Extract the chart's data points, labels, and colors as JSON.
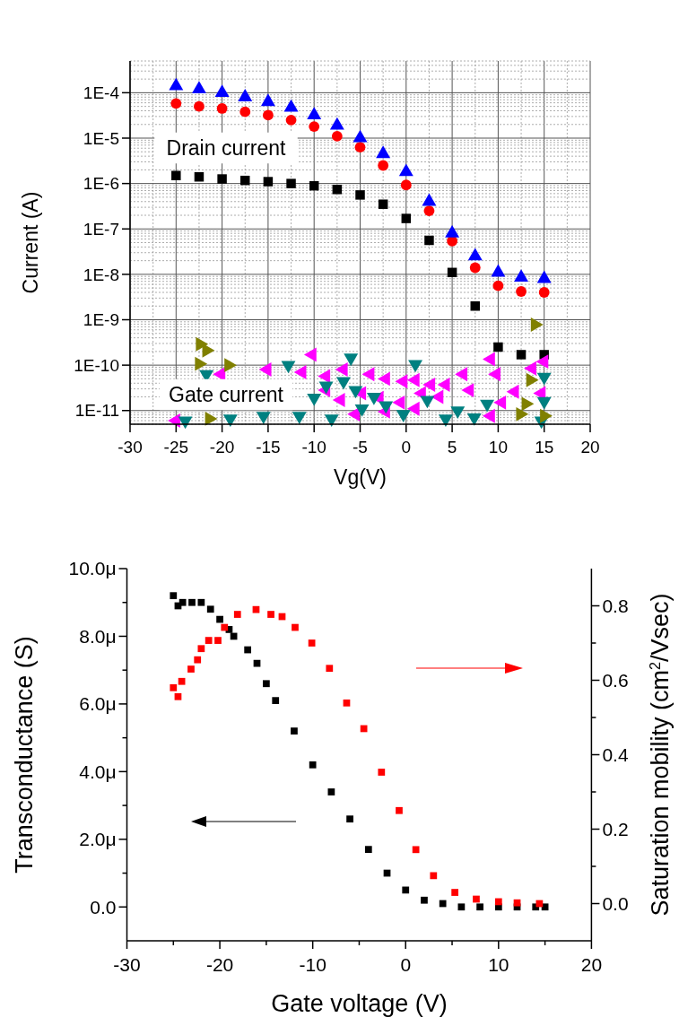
{
  "chart_data": [
    {
      "type": "scatter",
      "xlabel": "Vg(V)",
      "ylabel": "Current (A)",
      "log": "y",
      "grid": true,
      "xlim": [
        -30,
        20
      ],
      "xticks": [
        -30,
        -25,
        -20,
        -15,
        -10,
        -5,
        0,
        5,
        10,
        15,
        20
      ],
      "ylim": [
        5e-12,
        0.0005
      ],
      "yticks": [
        {
          "value": 1e-11,
          "label": "1E-11"
        },
        {
          "value": 1e-10,
          "label": "1E-10"
        },
        {
          "value": 1e-09,
          "label": "1E-9"
        },
        {
          "value": 1e-08,
          "label": "1E-8"
        },
        {
          "value": 1e-07,
          "label": "1E-7"
        },
        {
          "value": 1e-06,
          "label": "1E-6"
        },
        {
          "value": 1e-05,
          "label": "1E-5"
        },
        {
          "value": 0.0001,
          "label": "1E-4"
        }
      ],
      "series": [
        {
          "color": "#000000",
          "marker": "square",
          "x": [
            -25,
            -22.5,
            -20,
            -17.5,
            -15,
            -12.5,
            -10,
            -7.5,
            -5,
            -2.5,
            0,
            2.5,
            5,
            7.5,
            10,
            12.5,
            15
          ],
          "values": [
            1.5e-06,
            1.4e-06,
            1.26e-06,
            1.17e-06,
            1.1e-06,
            1e-06,
            8.9e-07,
            7.4e-07,
            5.6e-07,
            3.5e-07,
            1.7e-07,
            5.6e-08,
            1.1e-08,
            2e-09,
            2.5e-10,
            1.7e-10,
            1.7e-10
          ]
        },
        {
          "color": "#ff0000",
          "marker": "circle",
          "x": [
            -25,
            -22.5,
            -20,
            -17.5,
            -15,
            -12.5,
            -10,
            -7.5,
            -5,
            -2.5,
            0,
            2.5,
            5,
            7.5,
            10,
            12.5,
            15
          ],
          "values": [
            5.8e-05,
            5e-05,
            4.5e-05,
            3.8e-05,
            3.2e-05,
            2.5e-05,
            1.8e-05,
            1.1e-05,
            6.3e-06,
            2.5e-06,
            9.3e-07,
            2.5e-07,
            5.4e-08,
            1.4e-08,
            5.6e-09,
            4.2e-09,
            4e-09
          ]
        },
        {
          "color": "#0000ff",
          "marker": "triangle",
          "x": [
            -25,
            -22.5,
            -20,
            -17.5,
            -15,
            -12.5,
            -10,
            -7.5,
            -5,
            -2.5,
            0,
            2.5,
            5,
            7.5,
            10,
            12.5,
            15
          ],
          "values": [
            0.00014,
            0.00012,
            0.0001,
            8e-05,
            6.3e-05,
            4.7e-05,
            3.2e-05,
            1.9e-05,
            1e-05,
            4.5e-06,
            1.8e-06,
            4e-07,
            8e-08,
            2.5e-08,
            1.1e-08,
            8.5e-09,
            8e-09
          ]
        },
        {
          "color": "#ff00ff",
          "marker": "triangle-left",
          "x": [
            -10.2,
            -15.1,
            -11.3,
            -8.7,
            -6.8,
            -3.9,
            -2.2,
            -0.3,
            1.0,
            2.7,
            4.3,
            6.2,
            9.2,
            9.8,
            11.8,
            13.7,
            15.0,
            -8.7,
            -7.1,
            -4.8,
            -2.9,
            -0.6,
            1.7,
            3.6,
            6.9,
            10.4,
            14.7,
            -5.5,
            -2.2,
            1.0,
            9.2,
            -20.1,
            -25.0
          ],
          "values": [
            1.7e-10,
            8e-11,
            7e-11,
            5.7e-11,
            8e-11,
            6.3e-11,
            5e-11,
            4.4e-11,
            4.7e-11,
            3.7e-11,
            3.7e-11,
            6.3e-11,
            1.35e-10,
            6.3e-11,
            2.6e-11,
            8.5e-11,
            1.2e-10,
            2.8e-11,
            1.7e-11,
            2.4e-11,
            1.9e-11,
            1.5e-11,
            2.4e-11,
            2e-11,
            2.8e-11,
            1.5e-11,
            2.4e-11,
            8.3e-12,
            9.5e-12,
            1.1e-11,
            7.6e-12,
            6.3e-11,
            6e-12
          ]
        },
        {
          "color": "#008080",
          "marker": "triangle-down",
          "x": [
            -12.8,
            -6.0,
            1.0,
            -21.7,
            -8.7,
            -6.8,
            -5.5,
            -3.5,
            2.3,
            5.6,
            8.8,
            15.0,
            15.0,
            -15.5,
            -11.6,
            -8.1,
            -4.8,
            -0.3,
            4.3,
            7.4,
            14.7,
            -24.0,
            -19.1,
            -10.0,
            -2.2
          ],
          "values": [
            1e-10,
            1.45e-10,
            1.05e-10,
            6.3e-11,
            3.5e-11,
            4.4e-11,
            2.8e-11,
            2e-11,
            1.7e-11,
            1e-11,
            1.4e-11,
            5.5e-11,
            1.6e-11,
            7.6e-12,
            7.6e-12,
            6.6e-12,
            1.1e-11,
            8.3e-12,
            6.6e-12,
            7e-12,
            6e-12,
            6e-12,
            6.6e-12,
            1.9e-11,
            1.3e-11
          ]
        },
        {
          "color": "#808000",
          "marker": "triangle-right",
          "x": [
            14.0,
            -22.4,
            -21.7,
            -22.5,
            -19.3,
            13.5,
            13.0,
            12.4,
            15.0,
            -21.4
          ],
          "values": [
            7.8e-10,
            2.9e-10,
            2.1e-10,
            1.07e-10,
            1e-10,
            4.7e-11,
            1.4e-11,
            8.3e-12,
            7.6e-12,
            6.6e-12
          ]
        }
      ],
      "annotations": [
        "Drain current",
        "Gate current"
      ]
    },
    {
      "type": "scatter",
      "xlabel": "Gate voltage (V)",
      "ylabel": "Transconductance (S)",
      "y2label": "Saturation mobility (cm$^{2}$/Vsec)",
      "xlim": [
        -30,
        20
      ],
      "xticks": [
        -30,
        {
          "value": -25,
          "label": null
        },
        -20,
        {
          "value": -15,
          "label": null
        },
        -10,
        {
          "value": -5,
          "label": null
        },
        0,
        {
          "value": 5,
          "label": null
        },
        10,
        {
          "value": 15,
          "label": null
        },
        20
      ],
      "ylim": [
        -1,
        10
      ],
      "yticks": [
        {
          "value": 0,
          "label": "0.0"
        },
        {
          "value": 1,
          "label": null
        },
        {
          "value": 2,
          "label": "2.0μ"
        },
        {
          "value": 3,
          "label": null
        },
        {
          "value": 4,
          "label": "4.0μ"
        },
        {
          "value": 5,
          "label": null
        },
        {
          "value": 6,
          "label": "6.0μ"
        },
        {
          "value": 7,
          "label": null
        },
        {
          "value": 8,
          "label": "8.0μ"
        },
        {
          "value": 9,
          "label": null
        },
        {
          "value": 10,
          "label": "10.0μ"
        }
      ],
      "y2lim": [
        -0.1,
        0.9
      ],
      "y2ticks": [
        {
          "value": 0,
          "label": "0.0"
        },
        {
          "value": 0.1,
          "label": null
        },
        0.2,
        {
          "value": 0.3,
          "label": null
        },
        0.4,
        {
          "value": 0.5,
          "label": null
        },
        0.6,
        {
          "value": 0.7,
          "label": null
        },
        0.8
      ],
      "series": [
        {
          "color": "#000000",
          "marker": "square",
          "x": [
            -25,
            -24.5,
            -24,
            -23,
            -22,
            -21,
            -20,
            -19,
            -18.5,
            -17,
            -16,
            -15,
            -14,
            -12,
            -10,
            -8,
            -6,
            -4,
            -2,
            0,
            2,
            4,
            6,
            8,
            10,
            12,
            14,
            15
          ],
          "values": [
            9.2,
            8.9,
            9.0,
            9.0,
            9.0,
            8.8,
            8.5,
            8.2,
            8.0,
            7.6,
            7.2,
            6.6,
            6.1,
            5.2,
            4.2,
            3.4,
            2.6,
            1.7,
            1.0,
            0.5,
            0.2,
            0.1,
            0,
            0,
            0,
            0,
            0,
            0
          ]
        },
        {
          "color": "#ff0000",
          "marker": "square",
          "axis": "y2",
          "x": [
            -25,
            -24.5,
            -24.1,
            -23.1,
            -22.4,
            -22,
            -21.2,
            -20.2,
            -19.5,
            -18.1,
            -16.1,
            -14.5,
            -13.3,
            -11.9,
            -10.1,
            -8.2,
            -6.35,
            -4.5,
            -2.6,
            -0.7,
            1.1,
            3,
            5.3,
            7.6,
            10,
            12,
            14.4
          ],
          "values": [
            0.58,
            0.556,
            0.597,
            0.63,
            0.655,
            0.685,
            0.707,
            0.707,
            0.742,
            0.777,
            0.79,
            0.777,
            0.771,
            0.742,
            0.7,
            0.632,
            0.539,
            0.47,
            0.353,
            0.25,
            0.145,
            0.075,
            0.03,
            0.012,
            0.005,
            0.002,
            0
          ]
        }
      ]
    }
  ]
}
